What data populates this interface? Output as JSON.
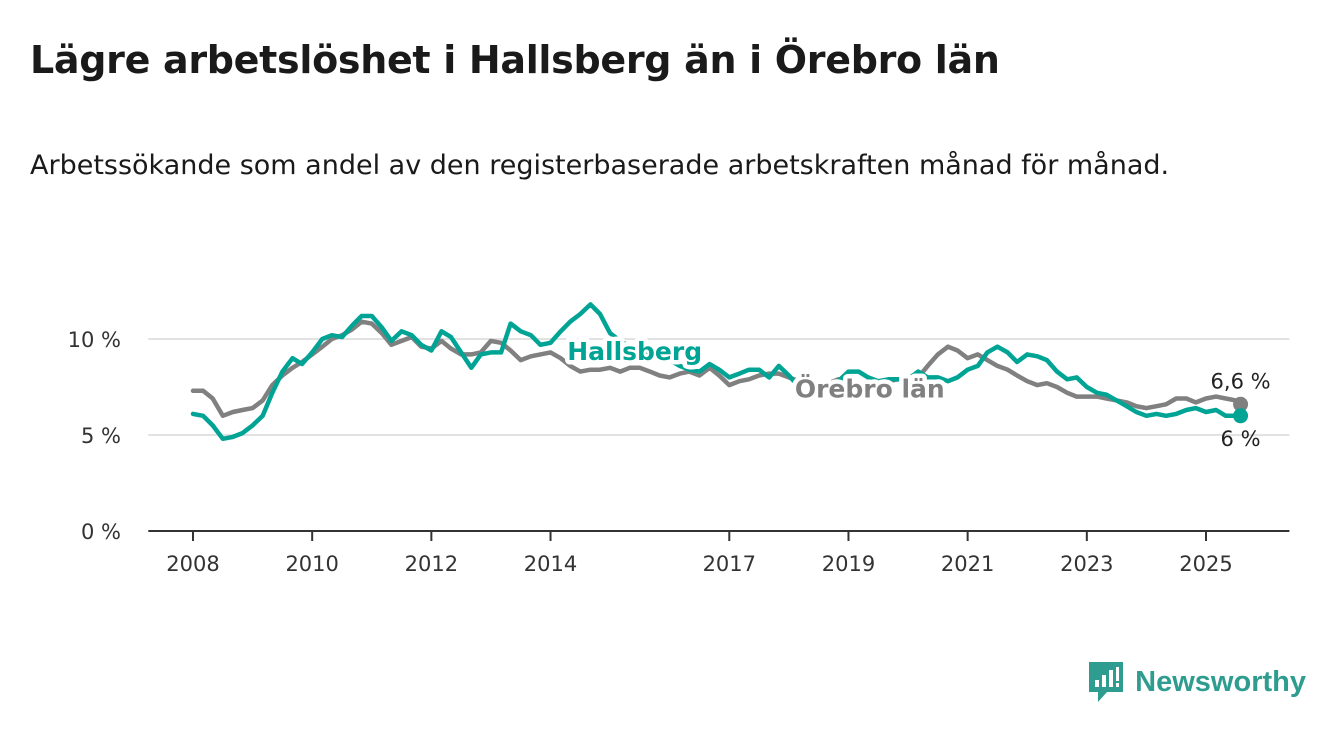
{
  "title": "Lägre arbetslöshet i Hallsberg än i Örebro län",
  "subtitle": "Arbetssökande som andel av den registerbaserade arbetskraften månad för månad.",
  "brand": "Newsworthy",
  "colors": {
    "hallsberg": "#00a495",
    "orebro": "#808080",
    "grid": "#d9d9d9",
    "axis": "#333333"
  },
  "chart_data": {
    "type": "line",
    "title": "Lägre arbetslöshet i Hallsberg än i Örebro län",
    "subtitle": "Arbetssökande som andel av den registerbaserade arbetskraften månad för månad.",
    "x_ticks": [
      2008,
      2010,
      2012,
      2014,
      2017,
      2019,
      2021,
      2023,
      2025
    ],
    "y_ticks": [
      0,
      5,
      10
    ],
    "y_tick_labels": [
      "0 %",
      "5 %",
      "10 %"
    ],
    "x_range": [
      2007.25,
      2026.4
    ],
    "ylim": [
      0,
      12
    ],
    "grid": true,
    "series": [
      {
        "name": "Örebro län",
        "color": "#808080",
        "end_label": "6,6 %",
        "points": [
          [
            2008.0,
            7.3
          ],
          [
            2008.17,
            7.3
          ],
          [
            2008.33,
            6.9
          ],
          [
            2008.5,
            6.0
          ],
          [
            2008.67,
            6.2
          ],
          [
            2008.83,
            6.3
          ],
          [
            2009.0,
            6.4
          ],
          [
            2009.17,
            6.8
          ],
          [
            2009.33,
            7.6
          ],
          [
            2009.5,
            8.1
          ],
          [
            2009.67,
            8.5
          ],
          [
            2009.83,
            8.8
          ],
          [
            2010.0,
            9.2
          ],
          [
            2010.17,
            9.6
          ],
          [
            2010.33,
            10.0
          ],
          [
            2010.5,
            10.2
          ],
          [
            2010.67,
            10.5
          ],
          [
            2010.83,
            10.9
          ],
          [
            2011.0,
            10.8
          ],
          [
            2011.17,
            10.3
          ],
          [
            2011.33,
            9.7
          ],
          [
            2011.5,
            9.9
          ],
          [
            2011.67,
            10.1
          ],
          [
            2011.83,
            9.6
          ],
          [
            2012.0,
            9.5
          ],
          [
            2012.17,
            9.9
          ],
          [
            2012.33,
            9.5
          ],
          [
            2012.5,
            9.2
          ],
          [
            2012.67,
            9.2
          ],
          [
            2012.83,
            9.3
          ],
          [
            2013.0,
            9.9
          ],
          [
            2013.17,
            9.8
          ],
          [
            2013.33,
            9.4
          ],
          [
            2013.5,
            8.9
          ],
          [
            2013.67,
            9.1
          ],
          [
            2013.83,
            9.2
          ],
          [
            2014.0,
            9.3
          ],
          [
            2014.17,
            9.0
          ],
          [
            2014.33,
            8.6
          ],
          [
            2014.5,
            8.3
          ],
          [
            2014.67,
            8.4
          ],
          [
            2014.83,
            8.4
          ],
          [
            2015.0,
            8.5
          ],
          [
            2015.17,
            8.3
          ],
          [
            2015.33,
            8.5
          ],
          [
            2015.5,
            8.5
          ],
          [
            2015.67,
            8.3
          ],
          [
            2015.83,
            8.1
          ],
          [
            2016.0,
            8.0
          ],
          [
            2016.17,
            8.2
          ],
          [
            2016.33,
            8.3
          ],
          [
            2016.5,
            8.1
          ],
          [
            2016.67,
            8.5
          ],
          [
            2016.83,
            8.1
          ],
          [
            2017.0,
            7.6
          ],
          [
            2017.17,
            7.8
          ],
          [
            2017.33,
            7.9
          ],
          [
            2017.5,
            8.1
          ],
          [
            2017.67,
            8.2
          ],
          [
            2017.83,
            8.2
          ],
          [
            2018.0,
            8.0
          ],
          [
            2018.17,
            7.8
          ],
          [
            2018.33,
            7.7
          ],
          [
            2018.5,
            7.7
          ],
          [
            2018.67,
            7.7
          ],
          [
            2018.83,
            7.9
          ],
          [
            2019.0,
            7.6
          ],
          [
            2019.17,
            7.6
          ],
          [
            2019.33,
            7.7
          ],
          [
            2019.5,
            7.8
          ],
          [
            2019.67,
            7.8
          ],
          [
            2019.83,
            7.9
          ],
          [
            2020.0,
            7.8
          ],
          [
            2020.17,
            8.0
          ],
          [
            2020.33,
            8.6
          ],
          [
            2020.5,
            9.2
          ],
          [
            2020.67,
            9.6
          ],
          [
            2020.83,
            9.4
          ],
          [
            2021.0,
            9.0
          ],
          [
            2021.17,
            9.2
          ],
          [
            2021.33,
            8.9
          ],
          [
            2021.5,
            8.6
          ],
          [
            2021.67,
            8.4
          ],
          [
            2021.83,
            8.1
          ],
          [
            2022.0,
            7.8
          ],
          [
            2022.17,
            7.6
          ],
          [
            2022.33,
            7.7
          ],
          [
            2022.5,
            7.5
          ],
          [
            2022.67,
            7.2
          ],
          [
            2022.83,
            7.0
          ],
          [
            2023.0,
            7.0
          ],
          [
            2023.17,
            7.0
          ],
          [
            2023.33,
            6.9
          ],
          [
            2023.5,
            6.8
          ],
          [
            2023.67,
            6.7
          ],
          [
            2023.83,
            6.5
          ],
          [
            2024.0,
            6.4
          ],
          [
            2024.17,
            6.5
          ],
          [
            2024.33,
            6.6
          ],
          [
            2024.5,
            6.9
          ],
          [
            2024.67,
            6.9
          ],
          [
            2024.83,
            6.7
          ],
          [
            2025.0,
            6.9
          ],
          [
            2025.17,
            7.0
          ],
          [
            2025.33,
            6.9
          ],
          [
            2025.5,
            6.8
          ],
          [
            2025.58,
            6.6
          ]
        ]
      },
      {
        "name": "Hallsberg",
        "color": "#00a495",
        "end_label": "6 %",
        "points": [
          [
            2008.0,
            6.1
          ],
          [
            2008.17,
            6.0
          ],
          [
            2008.33,
            5.5
          ],
          [
            2008.5,
            4.8
          ],
          [
            2008.67,
            4.9
          ],
          [
            2008.83,
            5.1
          ],
          [
            2009.0,
            5.5
          ],
          [
            2009.17,
            6.0
          ],
          [
            2009.33,
            7.2
          ],
          [
            2009.5,
            8.3
          ],
          [
            2009.67,
            9.0
          ],
          [
            2009.83,
            8.7
          ],
          [
            2010.0,
            9.3
          ],
          [
            2010.17,
            10.0
          ],
          [
            2010.33,
            10.2
          ],
          [
            2010.5,
            10.1
          ],
          [
            2010.67,
            10.7
          ],
          [
            2010.83,
            11.2
          ],
          [
            2011.0,
            11.2
          ],
          [
            2011.17,
            10.6
          ],
          [
            2011.33,
            9.9
          ],
          [
            2011.5,
            10.4
          ],
          [
            2011.67,
            10.2
          ],
          [
            2011.83,
            9.7
          ],
          [
            2012.0,
            9.4
          ],
          [
            2012.17,
            10.4
          ],
          [
            2012.33,
            10.1
          ],
          [
            2012.5,
            9.3
          ],
          [
            2012.67,
            8.5
          ],
          [
            2012.83,
            9.2
          ],
          [
            2013.0,
            9.3
          ],
          [
            2013.17,
            9.3
          ],
          [
            2013.33,
            10.8
          ],
          [
            2013.5,
            10.4
          ],
          [
            2013.67,
            10.2
          ],
          [
            2013.83,
            9.7
          ],
          [
            2014.0,
            9.8
          ],
          [
            2014.17,
            10.4
          ],
          [
            2014.33,
            10.9
          ],
          [
            2014.5,
            11.3
          ],
          [
            2014.67,
            11.8
          ],
          [
            2014.83,
            11.3
          ],
          [
            2015.0,
            10.3
          ],
          [
            2015.17,
            9.9
          ],
          [
            2015.33,
            9.6
          ],
          [
            2015.5,
            9.5
          ],
          [
            2015.67,
            9.3
          ],
          [
            2015.83,
            9.1
          ],
          [
            2016.0,
            8.9
          ],
          [
            2016.17,
            8.6
          ],
          [
            2016.33,
            8.4
          ],
          [
            2016.5,
            8.3
          ],
          [
            2016.67,
            8.7
          ],
          [
            2016.83,
            8.4
          ],
          [
            2017.0,
            8.0
          ],
          [
            2017.17,
            8.2
          ],
          [
            2017.33,
            8.4
          ],
          [
            2017.5,
            8.4
          ],
          [
            2017.67,
            8.0
          ],
          [
            2017.83,
            8.6
          ],
          [
            2018.0,
            8.1
          ],
          [
            2018.17,
            7.5
          ],
          [
            2018.33,
            7.3
          ],
          [
            2018.5,
            7.3
          ],
          [
            2018.67,
            7.5
          ],
          [
            2018.83,
            7.8
          ],
          [
            2019.0,
            8.3
          ],
          [
            2019.17,
            8.3
          ],
          [
            2019.33,
            8.0
          ],
          [
            2019.5,
            7.8
          ],
          [
            2019.67,
            7.9
          ],
          [
            2019.83,
            7.9
          ],
          [
            2020.0,
            7.9
          ],
          [
            2020.17,
            8.3
          ],
          [
            2020.33,
            8.0
          ],
          [
            2020.5,
            8.0
          ],
          [
            2020.67,
            7.8
          ],
          [
            2020.83,
            8.0
          ],
          [
            2021.0,
            8.4
          ],
          [
            2021.17,
            8.6
          ],
          [
            2021.33,
            9.3
          ],
          [
            2021.5,
            9.6
          ],
          [
            2021.67,
            9.3
          ],
          [
            2021.83,
            8.8
          ],
          [
            2022.0,
            9.2
          ],
          [
            2022.17,
            9.1
          ],
          [
            2022.33,
            8.9
          ],
          [
            2022.5,
            8.3
          ],
          [
            2022.67,
            7.9
          ],
          [
            2022.83,
            8.0
          ],
          [
            2023.0,
            7.5
          ],
          [
            2023.17,
            7.2
          ],
          [
            2023.33,
            7.1
          ],
          [
            2023.5,
            6.8
          ],
          [
            2023.67,
            6.5
          ],
          [
            2023.83,
            6.2
          ],
          [
            2024.0,
            6.0
          ],
          [
            2024.17,
            6.1
          ],
          [
            2024.33,
            6.0
          ],
          [
            2024.5,
            6.1
          ],
          [
            2024.67,
            6.3
          ],
          [
            2024.83,
            6.4
          ],
          [
            2025.0,
            6.2
          ],
          [
            2025.17,
            6.3
          ],
          [
            2025.33,
            6.0
          ],
          [
            2025.5,
            6.0
          ],
          [
            2025.58,
            6.0
          ]
        ]
      }
    ]
  }
}
